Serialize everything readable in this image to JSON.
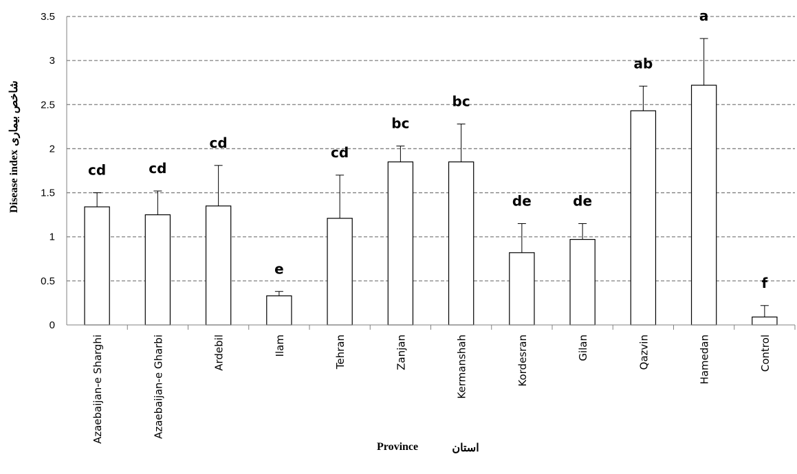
{
  "chart_data": {
    "type": "bar",
    "title": "",
    "xlabel_en": "Province",
    "xlabel_fa": "استان",
    "ylabel_en": "Disease index",
    "ylabel_fa": "شاخص بیماری",
    "ylim": [
      0,
      3.5
    ],
    "yticks": [
      "0",
      "0.5",
      "1",
      "1.5",
      "2",
      "2.5",
      "3",
      "3.5"
    ],
    "grid": "horizontal dashed",
    "categories": [
      "Azaebaijan-e Sharghi",
      "Azaebaijan-e Gharbi",
      "Ardebil",
      "Ilam",
      "Tehran",
      "Zanjan",
      "Kermanshah",
      "Kordesran",
      "Gilan",
      "Qazvin",
      "Hamedan",
      "Control"
    ],
    "values": [
      1.34,
      1.25,
      1.35,
      0.33,
      1.21,
      1.85,
      1.85,
      0.82,
      0.97,
      2.43,
      2.72,
      0.09
    ],
    "error_upper": [
      1.5,
      1.52,
      1.81,
      0.38,
      1.7,
      2.03,
      2.28,
      1.15,
      1.15,
      2.71,
      3.25,
      0.22
    ],
    "significance_labels": [
      "cd",
      "cd",
      "cd",
      "e",
      "cd",
      "bc",
      "bc",
      "de",
      "de",
      "ab",
      "a",
      "f"
    ],
    "colors": {
      "bar_fill": "#ffffff",
      "bar_stroke": "#000000",
      "grid": "#808080"
    }
  }
}
